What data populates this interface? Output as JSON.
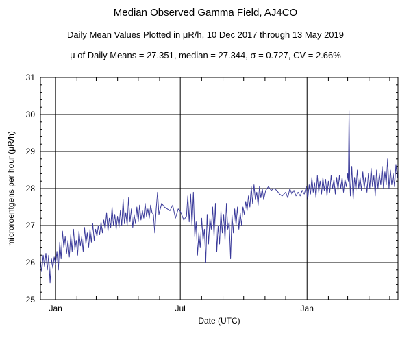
{
  "chart_data": {
    "type": "line",
    "title": "Median Observed Gamma Field, AJ4CO",
    "subtitle": "Daily Mean Values Plotted in μR/h, 10 Dec 2017 through 13 May 2019",
    "stats_line": "μ of Daily Means = 27.351,   median = 27.344,   σ = 0.727,   CV = 2.66%",
    "xlabel": "Date (UTC)",
    "ylabel": "microroentgens per hour (μR/h)",
    "xlim": [
      "2017-12-10",
      "2019-05-13"
    ],
    "ylim": [
      25,
      31
    ],
    "y_ticks": [
      "25",
      "26",
      "27",
      "28",
      "29",
      "30",
      "31"
    ],
    "x_tick_labels": [
      {
        "date": "2018-01-01",
        "label": "Jan"
      },
      {
        "date": "2018-07-01",
        "label": "Jul"
      },
      {
        "date": "2019-01-01",
        "label": "Jan"
      }
    ],
    "x_minor_ticks": [
      "2018-02-01",
      "2018-03-01",
      "2018-04-01",
      "2018-05-01",
      "2018-06-01",
      "2018-08-01",
      "2018-09-01",
      "2018-10-01",
      "2018-11-01",
      "2018-12-01",
      "2019-02-01",
      "2019-03-01",
      "2019-04-01",
      "2019-05-01"
    ],
    "grid": true,
    "line_color": "#3a3a9a",
    "series": [
      {
        "points": [
          [
            "2017-12-10",
            26.05
          ],
          [
            "2017-12-12",
            25.75
          ],
          [
            "2017-12-14",
            26.2
          ],
          [
            "2017-12-16",
            25.9
          ],
          [
            "2017-12-18",
            26.25
          ],
          [
            "2017-12-20",
            25.8
          ],
          [
            "2017-12-22",
            26.2
          ],
          [
            "2017-12-24",
            25.45
          ],
          [
            "2017-12-26",
            26.1
          ],
          [
            "2017-12-28",
            25.85
          ],
          [
            "2017-12-30",
            26.15
          ],
          [
            "2018-01-01",
            25.95
          ],
          [
            "2018-01-03",
            26.3
          ],
          [
            "2018-01-05",
            25.8
          ],
          [
            "2018-01-07",
            26.55
          ],
          [
            "2018-01-09",
            26.1
          ],
          [
            "2018-01-11",
            26.85
          ],
          [
            "2018-01-13",
            26.4
          ],
          [
            "2018-01-15",
            26.7
          ],
          [
            "2018-01-17",
            26.25
          ],
          [
            "2018-01-19",
            26.6
          ],
          [
            "2018-01-21",
            26.15
          ],
          [
            "2018-01-23",
            26.75
          ],
          [
            "2018-01-25",
            26.3
          ],
          [
            "2018-01-27",
            26.9
          ],
          [
            "2018-01-29",
            26.35
          ],
          [
            "2018-01-31",
            26.6
          ],
          [
            "2018-02-02",
            26.2
          ],
          [
            "2018-02-04",
            26.85
          ],
          [
            "2018-02-06",
            26.45
          ],
          [
            "2018-02-08",
            26.7
          ],
          [
            "2018-02-10",
            26.3
          ],
          [
            "2018-02-12",
            26.95
          ],
          [
            "2018-02-14",
            26.5
          ],
          [
            "2018-02-16",
            26.8
          ],
          [
            "2018-02-18",
            26.4
          ],
          [
            "2018-02-20",
            26.9
          ],
          [
            "2018-02-22",
            26.55
          ],
          [
            "2018-02-24",
            27.05
          ],
          [
            "2018-02-26",
            26.6
          ],
          [
            "2018-02-28",
            26.9
          ],
          [
            "2018-03-02",
            26.7
          ],
          [
            "2018-03-04",
            27.0
          ],
          [
            "2018-03-06",
            26.75
          ],
          [
            "2018-03-08",
            27.1
          ],
          [
            "2018-03-10",
            26.8
          ],
          [
            "2018-03-12",
            27.15
          ],
          [
            "2018-03-14",
            26.9
          ],
          [
            "2018-03-16",
            27.35
          ],
          [
            "2018-03-18",
            26.85
          ],
          [
            "2018-03-20",
            27.2
          ],
          [
            "2018-03-22",
            26.95
          ],
          [
            "2018-03-24",
            27.5
          ],
          [
            "2018-03-26",
            27.0
          ],
          [
            "2018-03-28",
            27.3
          ],
          [
            "2018-03-30",
            26.9
          ],
          [
            "2018-04-01",
            27.25
          ],
          [
            "2018-04-03",
            26.95
          ],
          [
            "2018-04-05",
            27.4
          ],
          [
            "2018-04-07",
            27.0
          ],
          [
            "2018-04-09",
            27.7
          ],
          [
            "2018-04-11",
            27.05
          ],
          [
            "2018-04-13",
            27.35
          ],
          [
            "2018-04-15",
            27.0
          ],
          [
            "2018-04-17",
            27.75
          ],
          [
            "2018-04-19",
            27.1
          ],
          [
            "2018-04-21",
            27.45
          ],
          [
            "2018-04-23",
            26.95
          ],
          [
            "2018-04-25",
            27.3
          ],
          [
            "2018-04-27",
            27.05
          ],
          [
            "2018-04-29",
            27.5
          ],
          [
            "2018-05-01",
            27.1
          ],
          [
            "2018-05-03",
            27.55
          ],
          [
            "2018-05-05",
            27.15
          ],
          [
            "2018-05-07",
            27.4
          ],
          [
            "2018-05-09",
            27.2
          ],
          [
            "2018-05-11",
            27.6
          ],
          [
            "2018-05-13",
            27.25
          ],
          [
            "2018-05-15",
            27.45
          ],
          [
            "2018-05-17",
            27.2
          ],
          [
            "2018-05-19",
            27.55
          ],
          [
            "2018-05-21",
            27.35
          ],
          [
            "2018-05-23",
            27.3
          ],
          [
            "2018-05-25",
            26.8
          ],
          [
            "2018-05-27",
            27.45
          ],
          [
            "2018-05-29",
            27.9
          ],
          [
            "2018-05-31",
            27.3
          ],
          [
            "2018-06-04",
            27.6
          ],
          [
            "2018-06-08",
            27.5
          ],
          [
            "2018-06-12",
            27.45
          ],
          [
            "2018-06-16",
            27.4
          ],
          [
            "2018-06-20",
            27.55
          ],
          [
            "2018-06-24",
            27.2
          ],
          [
            "2018-06-28",
            27.45
          ],
          [
            "2018-07-02",
            27.35
          ],
          [
            "2018-07-06",
            27.15
          ],
          [
            "2018-07-10",
            27.25
          ],
          [
            "2018-07-12",
            27.8
          ],
          [
            "2018-07-14",
            27.1
          ],
          [
            "2018-07-16",
            27.85
          ],
          [
            "2018-07-18",
            27.0
          ],
          [
            "2018-07-20",
            27.9
          ],
          [
            "2018-07-22",
            26.7
          ],
          [
            "2018-07-24",
            27.1
          ],
          [
            "2018-07-26",
            26.2
          ],
          [
            "2018-07-28",
            26.8
          ],
          [
            "2018-07-30",
            26.4
          ],
          [
            "2018-08-01",
            27.2
          ],
          [
            "2018-08-03",
            26.6
          ],
          [
            "2018-08-05",
            26.9
          ],
          [
            "2018-08-07",
            26.0
          ],
          [
            "2018-08-09",
            27.3
          ],
          [
            "2018-08-11",
            26.5
          ],
          [
            "2018-08-13",
            27.2
          ],
          [
            "2018-08-15",
            26.9
          ],
          [
            "2018-08-17",
            27.5
          ],
          [
            "2018-08-19",
            26.7
          ],
          [
            "2018-08-21",
            27.6
          ],
          [
            "2018-08-23",
            26.3
          ],
          [
            "2018-08-25",
            27.0
          ],
          [
            "2018-08-27",
            26.5
          ],
          [
            "2018-08-29",
            27.4
          ],
          [
            "2018-08-31",
            26.8
          ],
          [
            "2018-09-02",
            27.3
          ],
          [
            "2018-09-04",
            26.6
          ],
          [
            "2018-09-06",
            27.6
          ],
          [
            "2018-09-08",
            26.9
          ],
          [
            "2018-09-10",
            27.1
          ],
          [
            "2018-09-12",
            26.1
          ],
          [
            "2018-09-14",
            27.3
          ],
          [
            "2018-09-16",
            26.8
          ],
          [
            "2018-09-18",
            27.45
          ],
          [
            "2018-09-20",
            27.0
          ],
          [
            "2018-09-22",
            27.5
          ],
          [
            "2018-09-24",
            26.9
          ],
          [
            "2018-09-26",
            27.35
          ],
          [
            "2018-09-28",
            27.0
          ],
          [
            "2018-09-30",
            27.5
          ],
          [
            "2018-10-02",
            27.3
          ],
          [
            "2018-10-04",
            27.65
          ],
          [
            "2018-10-06",
            27.4
          ],
          [
            "2018-10-08",
            27.8
          ],
          [
            "2018-10-10",
            27.5
          ],
          [
            "2018-10-12",
            28.05
          ],
          [
            "2018-10-14",
            27.6
          ],
          [
            "2018-10-16",
            28.1
          ],
          [
            "2018-10-18",
            27.7
          ],
          [
            "2018-10-20",
            27.9
          ],
          [
            "2018-10-22",
            27.55
          ],
          [
            "2018-10-24",
            28.05
          ],
          [
            "2018-10-26",
            27.75
          ],
          [
            "2018-10-28",
            28.0
          ],
          [
            "2018-10-30",
            27.7
          ],
          [
            "2018-11-02",
            27.95
          ],
          [
            "2018-11-06",
            28.05
          ],
          [
            "2018-11-10",
            27.95
          ],
          [
            "2018-11-14",
            28.0
          ],
          [
            "2018-11-18",
            27.95
          ],
          [
            "2018-11-22",
            27.85
          ],
          [
            "2018-11-26",
            27.8
          ],
          [
            "2018-12-01",
            27.9
          ],
          [
            "2018-12-04",
            27.75
          ],
          [
            "2018-12-07",
            28.0
          ],
          [
            "2018-12-10",
            27.85
          ],
          [
            "2018-12-13",
            27.95
          ],
          [
            "2018-12-16",
            27.8
          ],
          [
            "2018-12-19",
            27.9
          ],
          [
            "2018-12-22",
            27.8
          ],
          [
            "2018-12-25",
            27.95
          ],
          [
            "2018-12-28",
            27.85
          ],
          [
            "2018-12-31",
            28.05
          ],
          [
            "2019-01-02",
            27.7
          ],
          [
            "2019-01-04",
            28.1
          ],
          [
            "2019-01-06",
            27.85
          ],
          [
            "2019-01-08",
            28.3
          ],
          [
            "2019-01-10",
            27.9
          ],
          [
            "2019-01-12",
            28.15
          ],
          [
            "2019-01-14",
            27.75
          ],
          [
            "2019-01-16",
            28.35
          ],
          [
            "2019-01-18",
            27.9
          ],
          [
            "2019-01-20",
            28.2
          ],
          [
            "2019-01-22",
            27.85
          ],
          [
            "2019-01-24",
            28.3
          ],
          [
            "2019-01-26",
            27.95
          ],
          [
            "2019-01-28",
            28.25
          ],
          [
            "2019-01-30",
            27.8
          ],
          [
            "2019-02-01",
            28.2
          ],
          [
            "2019-02-03",
            27.9
          ],
          [
            "2019-02-05",
            28.35
          ],
          [
            "2019-02-07",
            28.0
          ],
          [
            "2019-02-09",
            28.25
          ],
          [
            "2019-02-11",
            27.85
          ],
          [
            "2019-02-13",
            28.3
          ],
          [
            "2019-02-15",
            27.95
          ],
          [
            "2019-02-17",
            28.35
          ],
          [
            "2019-02-19",
            28.0
          ],
          [
            "2019-02-21",
            28.3
          ],
          [
            "2019-02-23",
            27.9
          ],
          [
            "2019-02-25",
            28.25
          ],
          [
            "2019-02-27",
            28.05
          ],
          [
            "2019-03-01",
            28.4
          ],
          [
            "2019-03-02",
            28.2
          ],
          [
            "2019-03-03",
            30.1
          ],
          [
            "2019-03-04",
            28.3
          ],
          [
            "2019-03-05",
            27.8
          ],
          [
            "2019-03-07",
            28.6
          ],
          [
            "2019-03-09",
            27.7
          ],
          [
            "2019-03-11",
            28.3
          ],
          [
            "2019-03-13",
            27.95
          ],
          [
            "2019-03-15",
            28.5
          ],
          [
            "2019-03-17",
            28.0
          ],
          [
            "2019-03-19",
            28.3
          ],
          [
            "2019-03-21",
            27.95
          ],
          [
            "2019-03-23",
            28.45
          ],
          [
            "2019-03-25",
            28.0
          ],
          [
            "2019-03-27",
            28.3
          ],
          [
            "2019-03-29",
            27.9
          ],
          [
            "2019-03-31",
            28.4
          ],
          [
            "2019-04-02",
            28.0
          ],
          [
            "2019-04-04",
            28.55
          ],
          [
            "2019-04-06",
            28.05
          ],
          [
            "2019-04-08",
            28.35
          ],
          [
            "2019-04-10",
            27.8
          ],
          [
            "2019-04-12",
            28.5
          ],
          [
            "2019-04-14",
            28.0
          ],
          [
            "2019-04-16",
            28.4
          ],
          [
            "2019-04-18",
            28.1
          ],
          [
            "2019-04-20",
            28.6
          ],
          [
            "2019-04-22",
            28.0
          ],
          [
            "2019-04-24",
            28.45
          ],
          [
            "2019-04-26",
            28.1
          ],
          [
            "2019-04-28",
            28.8
          ],
          [
            "2019-04-30",
            28.0
          ],
          [
            "2019-05-02",
            28.5
          ],
          [
            "2019-05-04",
            28.1
          ],
          [
            "2019-05-06",
            28.4
          ],
          [
            "2019-05-08",
            28.05
          ],
          [
            "2019-05-10",
            28.65
          ],
          [
            "2019-05-12",
            28.3
          ],
          [
            "2019-05-13",
            28.5
          ]
        ]
      }
    ]
  }
}
